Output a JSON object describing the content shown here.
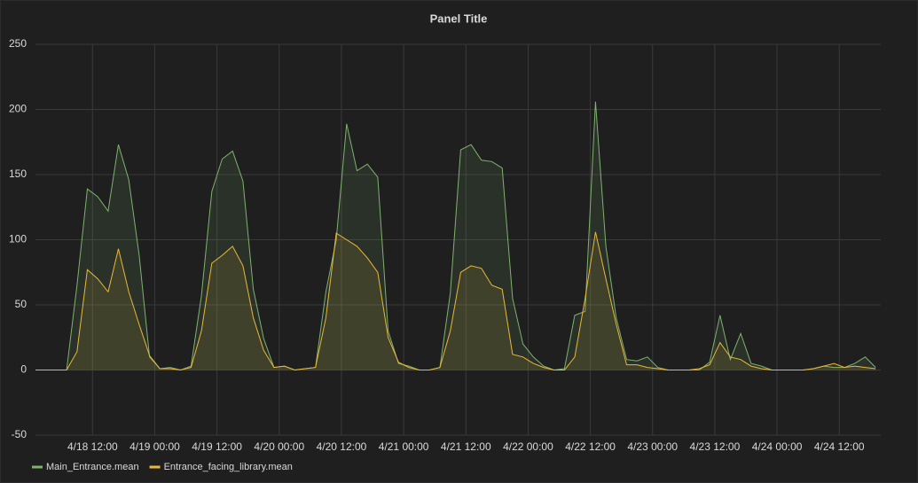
{
  "chart_data": {
    "type": "line",
    "title": "Panel Title",
    "x": [
      "4/18 01:00",
      "4/18 03:00",
      "4/18 05:00",
      "4/18 07:00",
      "4/18 09:00",
      "4/18 11:00",
      "4/18 13:00",
      "4/18 15:00",
      "4/18 17:00",
      "4/18 19:00",
      "4/18 21:00",
      "4/18 23:00",
      "4/19 01:00",
      "4/19 03:00",
      "4/19 05:00",
      "4/19 07:00",
      "4/19 09:00",
      "4/19 11:00",
      "4/19 13:00",
      "4/19 15:00",
      "4/19 17:00",
      "4/19 19:00",
      "4/19 21:00",
      "4/19 23:00",
      "4/20 01:00",
      "4/20 03:00",
      "4/20 05:00",
      "4/20 07:00",
      "4/20 09:00",
      "4/20 11:00",
      "4/20 13:00",
      "4/20 15:00",
      "4/20 17:00",
      "4/20 19:00",
      "4/20 21:00",
      "4/20 23:00",
      "4/21 01:00",
      "4/21 03:00",
      "4/21 05:00",
      "4/21 07:00",
      "4/21 09:00",
      "4/21 11:00",
      "4/21 13:00",
      "4/21 15:00",
      "4/21 17:00",
      "4/21 19:00",
      "4/21 21:00",
      "4/21 23:00",
      "4/22 01:00",
      "4/22 03:00",
      "4/22 05:00",
      "4/22 07:00",
      "4/22 09:00",
      "4/22 11:00",
      "4/22 13:00",
      "4/22 15:00",
      "4/22 17:00",
      "4/22 19:00",
      "4/22 21:00",
      "4/22 23:00",
      "4/23 01:00",
      "4/23 03:00",
      "4/23 05:00",
      "4/23 07:00",
      "4/23 09:00",
      "4/23 11:00",
      "4/23 13:00",
      "4/23 15:00",
      "4/23 17:00",
      "4/23 19:00",
      "4/23 21:00",
      "4/23 23:00",
      "4/24 01:00",
      "4/24 03:00",
      "4/24 05:00",
      "4/24 07:00",
      "4/24 09:00",
      "4/24 11:00",
      "4/24 13:00",
      "4/24 15:00",
      "4/24 17:00",
      "4/24 19:00"
    ],
    "series": [
      {
        "name": "Main_Entrance.mean",
        "color": "#7eb26d",
        "values": [
          0,
          0,
          0,
          0,
          65,
          139,
          133,
          122,
          173,
          146,
          88,
          10,
          1,
          2,
          0,
          3,
          57,
          137,
          162,
          168,
          145,
          62,
          24,
          2,
          3,
          0,
          1,
          2,
          60,
          100,
          189,
          153,
          158,
          148,
          30,
          5,
          3,
          0,
          0,
          2,
          59,
          169,
          173,
          161,
          160,
          155,
          55,
          20,
          10,
          3,
          0,
          1,
          42,
          45,
          206,
          95,
          40,
          8,
          7,
          10,
          2,
          0,
          0,
          0,
          0,
          6,
          42,
          8,
          28,
          5,
          3,
          0,
          0,
          0,
          0,
          1,
          3,
          2,
          2,
          5,
          10,
          2
        ]
      },
      {
        "name": "Entrance_facing_library.mean",
        "color": "#eab839",
        "values": [
          0,
          0,
          0,
          0,
          14,
          77,
          70,
          60,
          93,
          60,
          35,
          11,
          1,
          1,
          0,
          2,
          30,
          82,
          88,
          95,
          80,
          40,
          15,
          2,
          3,
          0,
          1,
          2,
          40,
          105,
          100,
          95,
          86,
          75,
          25,
          6,
          2,
          0,
          0,
          2,
          30,
          75,
          80,
          78,
          65,
          62,
          12,
          10,
          5,
          2,
          0,
          0,
          10,
          55,
          106,
          70,
          35,
          4,
          4,
          2,
          1,
          0,
          0,
          0,
          1,
          4,
          21,
          10,
          8,
          3,
          1,
          0,
          0,
          0,
          0,
          1,
          3,
          5,
          2,
          3,
          2,
          1
        ]
      }
    ],
    "xlim": [
      "4/18 01:00",
      "4/24 20:00"
    ],
    "xticks": [
      "4/18 12:00",
      "4/19 00:00",
      "4/19 12:00",
      "4/20 00:00",
      "4/20 12:00",
      "4/21 00:00",
      "4/21 12:00",
      "4/22 00:00",
      "4/22 12:00",
      "4/23 00:00",
      "4/23 12:00",
      "4/24 00:00",
      "4/24 12:00"
    ],
    "ylim": [
      -50,
      250
    ],
    "yticks": [
      -50,
      0,
      50,
      100,
      150,
      200,
      250
    ],
    "grid": true,
    "legend": "bottom"
  }
}
